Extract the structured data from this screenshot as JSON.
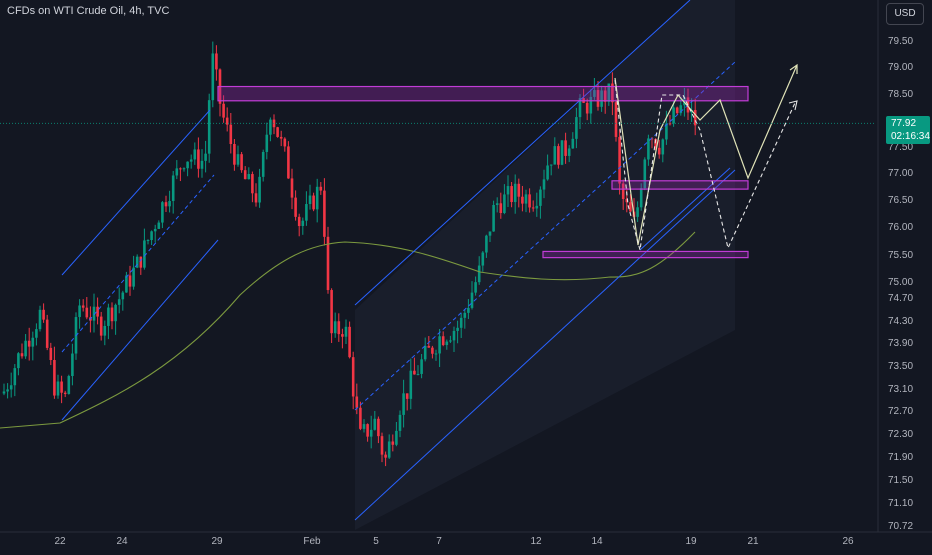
{
  "header": {
    "symbol_title": "CFDs on WTI Crude Oil, 4h, TVC",
    "currency_button": "USD"
  },
  "last_price": {
    "value": "77.92",
    "countdown": "02:16:34"
  },
  "colors": {
    "background": "#131722",
    "up": "#089981",
    "down": "#f23645",
    "channel": "#2962ff",
    "zone": "#9c27b0",
    "ma": "#7c9a3f",
    "projection": "#e0e3b8"
  },
  "chart_data": {
    "type": "candlestick",
    "title": "CFDs on WTI Crude Oil, 4h, TVC",
    "x_ticks": [
      "22",
      "24",
      "29",
      "Feb",
      "5",
      "7",
      "12",
      "14",
      "19",
      "21",
      "26"
    ],
    "y_ticks": [
      79.5,
      79.0,
      78.5,
      78.0,
      77.5,
      77.0,
      76.5,
      76.0,
      75.5,
      75.0,
      74.7,
      74.3,
      73.9,
      73.5,
      73.1,
      72.7,
      72.3,
      71.9,
      71.5,
      71.1,
      70.72
    ],
    "ylim": [
      70.6,
      80.3
    ],
    "grid": false,
    "last_price": 77.92,
    "resistance_zone": {
      "low": 78.35,
      "high": 78.62
    },
    "support_zones": [
      {
        "low": 76.72,
        "high": 76.8
      },
      {
        "low": 75.47,
        "high": 75.51
      }
    ],
    "annotations": [
      "ascending regression channels",
      "moving average",
      "projected path arrows"
    ]
  }
}
